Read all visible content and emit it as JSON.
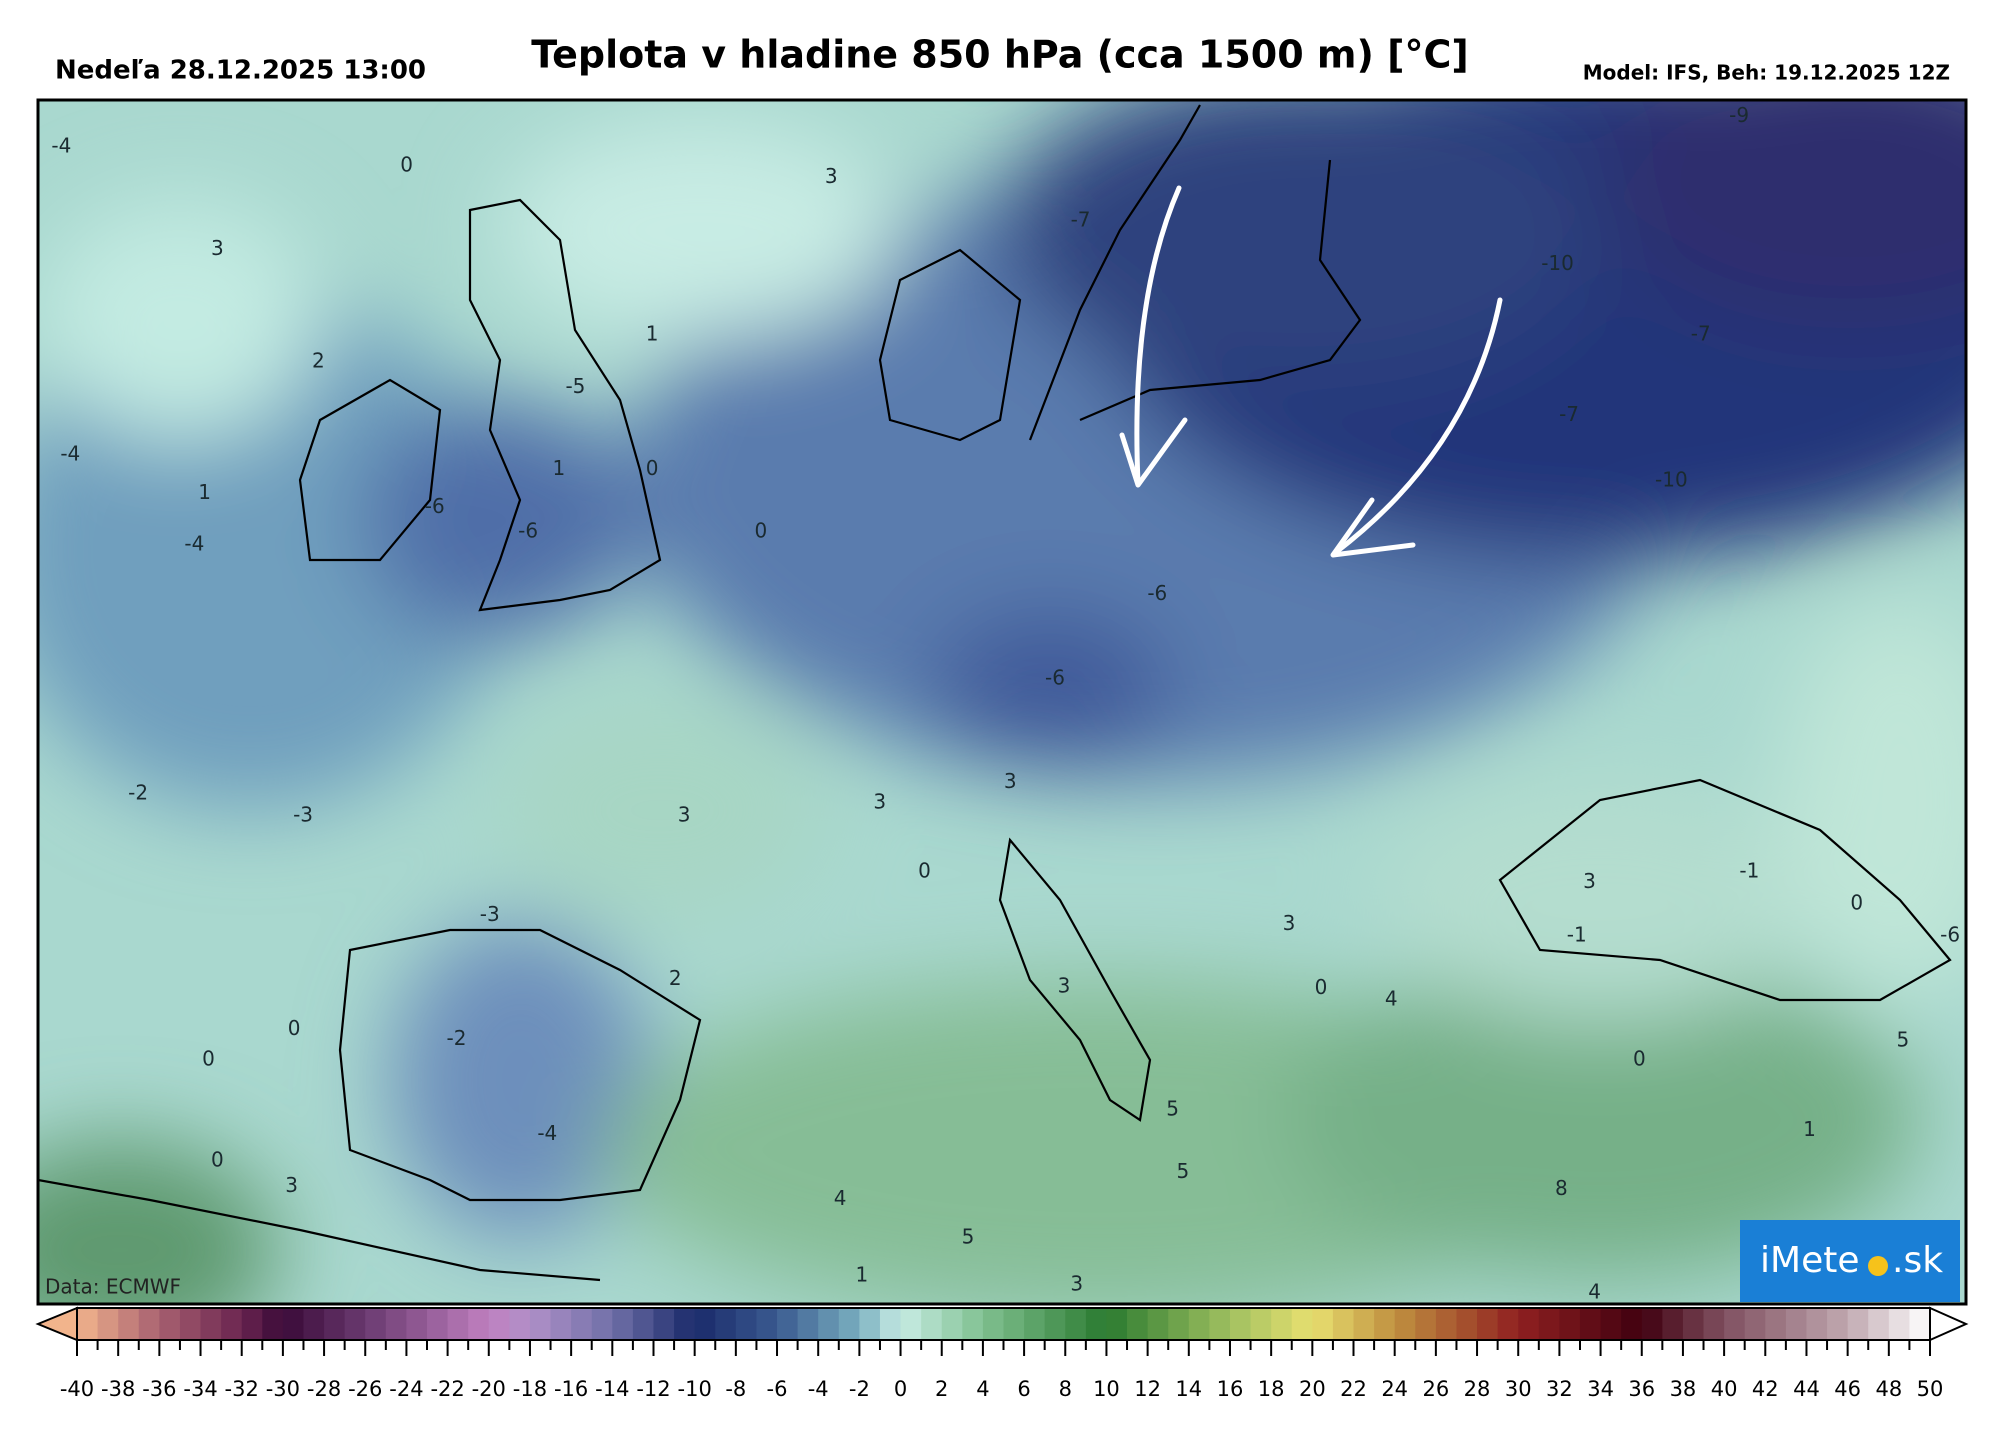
{
  "header": {
    "date": "Nedeľa 28.12.2025 13:00",
    "title": "Teplota v hladine 850 hPa (cca 1500 m) [°C]",
    "model": "Model: IFS, Beh: 19.12.2025 12Z"
  },
  "map": {
    "credit": "Data: ECMWF",
    "labels": [
      "-4",
      "0",
      "3",
      "2",
      "1",
      "-5",
      "-4",
      "1",
      "-4",
      "-6",
      "-6",
      "1",
      "0",
      "0",
      "3",
      "-7",
      "-10",
      "-7",
      "-7",
      "-10",
      "-9",
      "-6",
      "-6",
      "-2",
      "-3",
      "3",
      "3",
      "3",
      "0",
      "-3",
      "2",
      "3",
      "3",
      "-1",
      "-1",
      "0",
      "-6",
      "0",
      "0",
      "-2",
      "3",
      "0",
      "4",
      "0",
      "5",
      "5",
      "-4",
      "0",
      "3",
      "5",
      "1",
      "8",
      "4",
      "5",
      "1",
      "3",
      "4"
    ]
  },
  "logo": {
    "left": "iMete",
    "right": ".sk"
  },
  "colorbar": {
    "min": -40,
    "max": 50,
    "ticks": [
      -40,
      -38,
      -36,
      -34,
      -32,
      -30,
      -28,
      -26,
      -24,
      -22,
      -20,
      -18,
      -16,
      -14,
      -12,
      -10,
      -8,
      -6,
      -4,
      -2,
      0,
      2,
      4,
      6,
      8,
      10,
      12,
      14,
      16,
      18,
      20,
      22,
      24,
      26,
      28,
      30,
      32,
      34,
      36,
      38,
      40,
      42,
      44,
      46,
      48,
      50
    ],
    "stops": [
      {
        "value": -40,
        "color": "#f2b48c"
      },
      {
        "value": -36,
        "color": "#a86070"
      },
      {
        "value": -32,
        "color": "#6a2550"
      },
      {
        "value": -30,
        "color": "#3a0a38"
      },
      {
        "value": -26,
        "color": "#6a3a70"
      },
      {
        "value": -20,
        "color": "#c080c0"
      },
      {
        "value": -18,
        "color": "#b090c8"
      },
      {
        "value": -14,
        "color": "#7070a8"
      },
      {
        "value": -10,
        "color": "#1a2a6a"
      },
      {
        "value": -6,
        "color": "#3a5a90"
      },
      {
        "value": -2,
        "color": "#7ab0c0"
      },
      {
        "value": 0,
        "color": "#c8ece4"
      },
      {
        "value": 4,
        "color": "#80c090"
      },
      {
        "value": 10,
        "color": "#2a7a30"
      },
      {
        "value": 16,
        "color": "#a0c060"
      },
      {
        "value": 20,
        "color": "#e8e070"
      },
      {
        "value": 24,
        "color": "#c09040"
      },
      {
        "value": 30,
        "color": "#902020"
      },
      {
        "value": 36,
        "color": "#400010"
      },
      {
        "value": 40,
        "color": "#805060"
      },
      {
        "value": 46,
        "color": "#c0a8b0"
      },
      {
        "value": 50,
        "color": "#ffffff"
      }
    ]
  }
}
